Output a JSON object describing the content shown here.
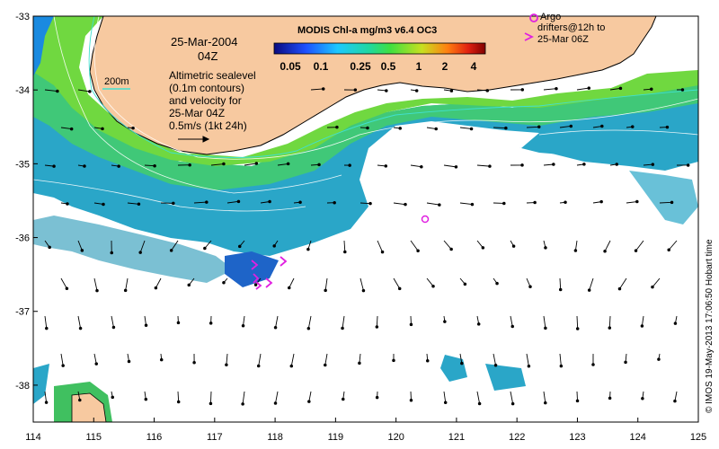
{
  "map": {
    "lon_range": [
      114,
      125
    ],
    "lat_range": [
      -38.5,
      -33
    ],
    "lon_ticks": [
      "114",
      "115",
      "116",
      "117",
      "118",
      "119",
      "120",
      "121",
      "122",
      "123",
      "124",
      "125"
    ],
    "lat_ticks": [
      "-33",
      "-34",
      "-35",
      "-36",
      "-37",
      "-38"
    ],
    "date_line1": "25-Mar-2004",
    "date_line2": "04Z",
    "contour_label": "200m",
    "alt_lines": [
      "Altimetric sealevel",
      "(0.1m contours)",
      "and velocity for",
      "25-Mar 04Z"
    ],
    "velocity_scale_label": "0.5m/s (1kt 24h)",
    "colorbar_title": "MODIS Chl-a mg/m3 v6.4 OC3",
    "colorbar_labels": [
      "0.05",
      "0.1",
      "0.25",
      "0.5",
      "1",
      "2",
      "4"
    ],
    "argo_lines": [
      "Argo",
      "drifters@12h to",
      "25-Mar 06Z"
    ],
    "credit": "© IMOS 19-May-2013 17:06:50 Hobart time",
    "colors": {
      "land": "#f7c9a0",
      "coast": "#000000",
      "contour": "#40e0d0",
      "argo": "#e020e0",
      "arrow": "#000000"
    }
  }
}
